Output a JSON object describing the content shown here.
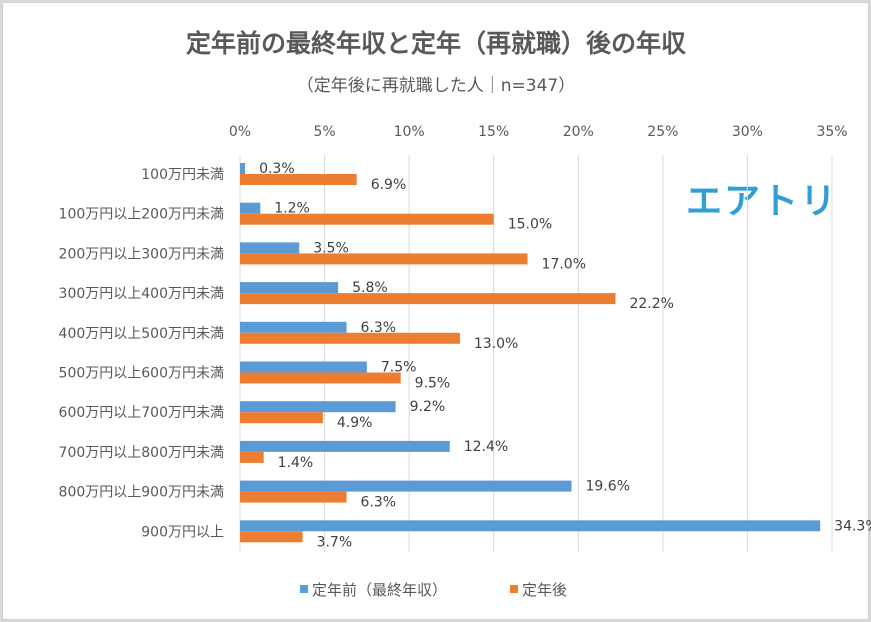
{
  "chart_data": {
    "type": "bar",
    "orientation": "horizontal",
    "title": "定年前の最終年収と定年（再就職）後の年収",
    "subtitle": "（定年後に再就職した人｜n=347）",
    "categories": [
      "100万円未満",
      "100万円以上200万円未満",
      "200万円以上300万円未満",
      "300万円以上400万円未満",
      "400万円以上500万円未満",
      "500万円以上600万円未満",
      "600万円以上700万円未満",
      "700万円以上800万円未満",
      "800万円以上900万円未満",
      "900万円以上"
    ],
    "series": [
      {
        "name": "定年前（最終年収）",
        "color": "#5b9bd5",
        "values": [
          0.3,
          1.2,
          3.5,
          5.8,
          6.3,
          7.5,
          9.2,
          12.4,
          19.6,
          34.3
        ]
      },
      {
        "name": "定年後",
        "color": "#ed7d31",
        "values": [
          6.9,
          15.0,
          17.0,
          22.2,
          13.0,
          9.5,
          4.9,
          1.4,
          6.3,
          3.7
        ]
      }
    ],
    "xlim": [
      0,
      35
    ],
    "xticks": [
      "0%",
      "5%",
      "10%",
      "15%",
      "20%",
      "25%",
      "30%",
      "35%"
    ],
    "xtick_values": [
      0,
      5,
      10,
      15,
      20,
      25,
      30,
      35
    ],
    "axis_position": "top",
    "grid": true,
    "legend": "bottom",
    "data_label_suffix": "%"
  },
  "logo": "エアトリ"
}
